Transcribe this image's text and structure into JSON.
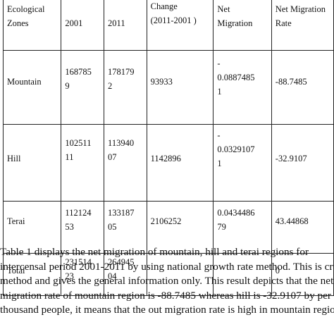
{
  "table": {
    "header": {
      "col1": "Ecological\nZones",
      "col2": "2001",
      "col3": "2011",
      "col4": "Change\n(2011-2001 )",
      "col5": "Net\nMigration",
      "col6": "Net  Migration\nRate"
    },
    "rows": [
      {
        "zone": "Mountain",
        "y2001": "168785\n9",
        "y2011": "178179\n2",
        "change": "93933",
        "net": "-\n0.0887485\n1",
        "rate": "-88.7485"
      },
      {
        "zone": "Hill",
        "y2001": "102511\n11",
        "y2011": "113940\n07",
        "change": "1142896",
        "net": "-\n0.0329107\n1",
        "rate": "-32.9107"
      },
      {
        "zone": "Terai",
        "y2001": "112124\n53",
        "y2011": "133187\n05",
        "change": "2106252",
        "net": "0.0434486\n79",
        "rate": "43.44868"
      },
      {
        "zone": "Total",
        "y2001": "231514\n23",
        "y2011": "264945\n04",
        "change": "",
        "net": "",
        "rate": "0"
      }
    ]
  },
  "paragraph": [
    "Table 1 displays the net migration of mountain, hill and terai regions for",
    "intercensal period 2001-2011 by using national growth rate method. This is crude",
    "method and gives the general information only. This result depicts that the net",
    "migration rate of mountain region is -88.7485 whereas hill is -32.9107 by per",
    "thousand people, it means that the out migration rate is high in mountain region"
  ]
}
